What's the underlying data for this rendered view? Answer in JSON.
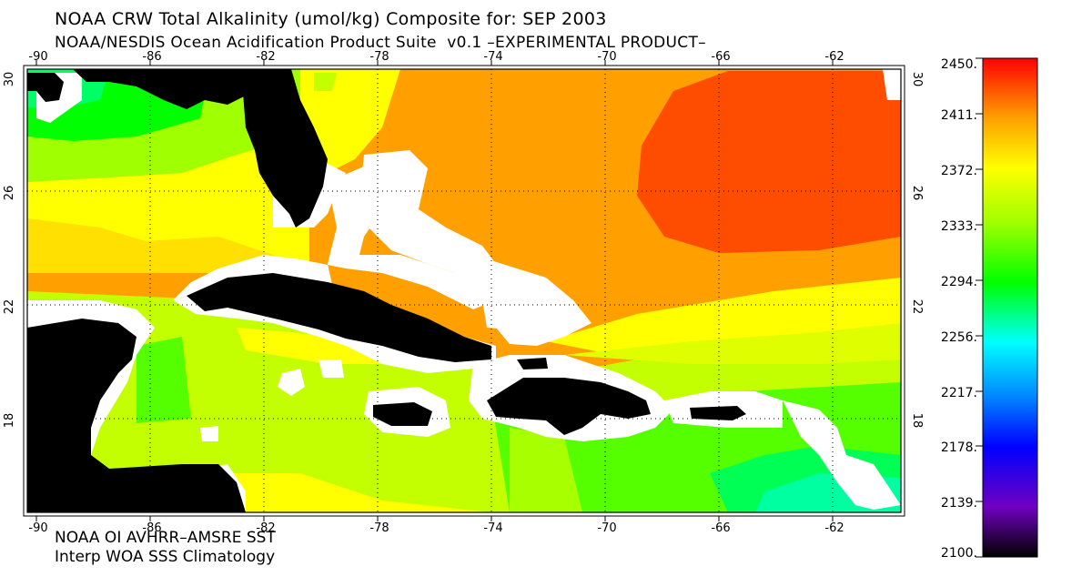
{
  "header": {
    "title": "NOAA CRW Total Alkalinity (umol/kg) Composite for: SEP 2003",
    "subtitle": "NOAA/NESDIS Ocean Acidification Product Suite  v0.1 –EXPERIMENTAL PRODUCT–"
  },
  "footer": {
    "line1": "NOAA OI AVHRR–AMSRE SST",
    "line2": "Interp WOA SSS Climatology"
  },
  "map": {
    "lon_ticks": [
      "-90",
      "-86",
      "-82",
      "-78",
      "-74",
      "-70",
      "-66",
      "-62"
    ],
    "lat_ticks": [
      "30",
      "26",
      "22",
      "18"
    ],
    "land_color": "#000000",
    "mask_color": "#ffffff"
  },
  "colorbar": {
    "labels": [
      "2450.",
      "2411.",
      "2372.",
      "2333.",
      "2294.",
      "2256.",
      "2217.",
      "2178.",
      "2139.",
      "2100."
    ],
    "min": 2100,
    "max": 2450
  },
  "colors": {
    "red": "#ff0000",
    "red_orange": "#ff4d00",
    "orange": "#ffa000",
    "yellow": "#ffff00",
    "yellow_green": "#c3ff00",
    "lime": "#9aff00",
    "green": "#00ff00",
    "spring_green": "#00ffa0",
    "cyan": "#00ffff",
    "blue": "#0050ff",
    "violet": "#7000c0",
    "black": "#000000"
  }
}
